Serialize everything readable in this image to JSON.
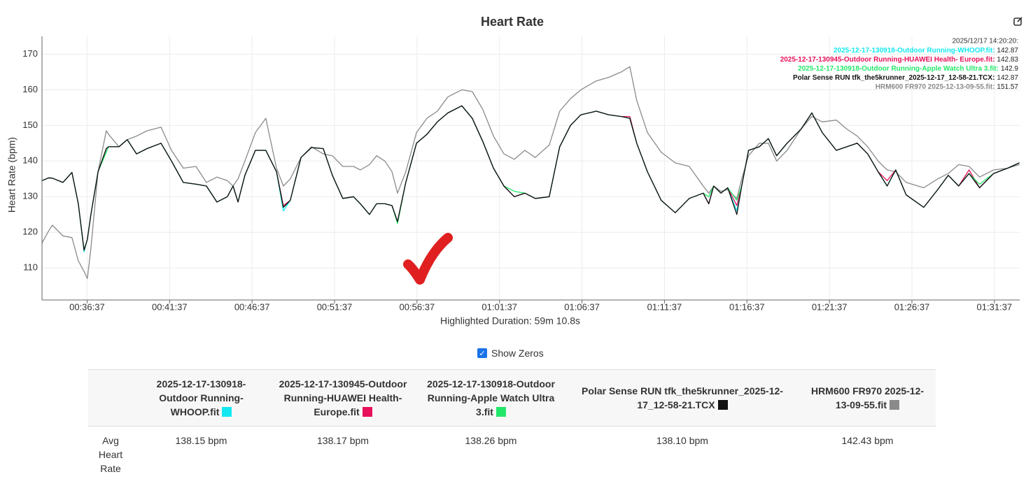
{
  "chart_data": {
    "type": "line",
    "title": "Heart Rate",
    "ylabel": "Heart Rate (bpm)",
    "xlabel": "Highlighted Duration: 59m 10.8s",
    "xlim": [
      2033,
      5589
    ],
    "ylim": [
      101,
      175
    ],
    "grid": true,
    "xticks": [
      {
        "value": 2197,
        "label": "00:36:37"
      },
      {
        "value": 2497,
        "label": "00:41:37"
      },
      {
        "value": 2797,
        "label": "00:46:37"
      },
      {
        "value": 3097,
        "label": "00:51:37"
      },
      {
        "value": 3397,
        "label": "00:56:37"
      },
      {
        "value": 3697,
        "label": "01:01:37"
      },
      {
        "value": 3997,
        "label": "01:06:37"
      },
      {
        "value": 4297,
        "label": "01:11:37"
      },
      {
        "value": 4597,
        "label": "01:16:37"
      },
      {
        "value": 4897,
        "label": "01:21:37"
      },
      {
        "value": 5197,
        "label": "01:26:37"
      },
      {
        "value": 5497,
        "label": "01:31:37"
      }
    ],
    "yticks": [
      110,
      120,
      130,
      140,
      150,
      160,
      170
    ],
    "x": [
      2033,
      2058,
      2071,
      2109,
      2142,
      2165,
      2186,
      2198,
      2211,
      2237,
      2267,
      2275,
      2313,
      2343,
      2377,
      2415,
      2466,
      2504,
      2547,
      2593,
      2631,
      2669,
      2707,
      2728,
      2746,
      2771,
      2809,
      2847,
      2886,
      2911,
      2936,
      2975,
      3013,
      3056,
      3089,
      3127,
      3166,
      3191,
      3224,
      3250,
      3280,
      3306,
      3326,
      3356,
      3395,
      3433,
      3471,
      3509,
      3560,
      3598,
      3636,
      3675,
      3713,
      3751,
      3789,
      3827,
      3878,
      3916,
      3955,
      3993,
      4049,
      4094,
      4140,
      4171,
      4196,
      4235,
      4285,
      4336,
      4387,
      4438,
      4458,
      4476,
      4502,
      4527,
      4560,
      4578,
      4603,
      4642,
      4675,
      4705,
      4743,
      4794,
      4833,
      4871,
      4922,
      4960,
      4998,
      5036,
      5074,
      5107,
      5138,
      5176,
      5240,
      5291,
      5329,
      5367,
      5405,
      5443,
      5494,
      5545,
      5588
    ],
    "series": [
      {
        "name": "2025-12-17-130918-Outdoor Running-WHOOP.fit",
        "color": "#13e8f0",
        "values": [
          134.5,
          135.3,
          135.2,
          134,
          136.8,
          128,
          114.5,
          118,
          125,
          137,
          143.5,
          144,
          144,
          146,
          142,
          143.5,
          145,
          140,
          134,
          133.5,
          133,
          128.5,
          130,
          133,
          128.5,
          136,
          143,
          143,
          137,
          126,
          129,
          141,
          143.8,
          143.5,
          136,
          129.5,
          130,
          128,
          125,
          128,
          128,
          127.5,
          123,
          134,
          145,
          147.5,
          151,
          153.5,
          155.5,
          152,
          145.5,
          138,
          133,
          130,
          131,
          129.5,
          130,
          144,
          150,
          153,
          154,
          153,
          152.5,
          152,
          145,
          137,
          129,
          125.5,
          129.5,
          131,
          128,
          133,
          131,
          132.5,
          126,
          133,
          143,
          144,
          146.3,
          141.5,
          145,
          149,
          153.5,
          148,
          143,
          144,
          145,
          142,
          137,
          133,
          137.5,
          130.5,
          127,
          132,
          136,
          133,
          136.5,
          132.5,
          136.5,
          138,
          139.5
        ]
      },
      {
        "name": "2025-12-17-130945-Outdoor Running-HUAWEI Health- Europe.fit",
        "color": "#e8105a",
        "values": [
          134.5,
          135.3,
          135.2,
          134,
          136.8,
          128,
          115,
          118,
          125,
          137,
          143.5,
          144,
          144,
          146,
          142,
          143.5,
          145,
          140,
          134,
          133.5,
          133,
          128.5,
          130,
          133,
          128.5,
          136,
          143,
          143,
          137,
          127.5,
          129,
          141,
          143.8,
          143.5,
          136,
          129.5,
          130,
          128,
          125,
          128,
          128,
          127.5,
          123,
          134,
          145,
          147.5,
          151,
          153.5,
          155.5,
          152,
          145.5,
          138,
          133,
          130,
          131,
          129.5,
          130,
          144,
          150,
          153,
          154,
          153,
          152.5,
          152.5,
          145,
          137,
          129,
          125.5,
          129.5,
          131,
          128,
          133,
          131,
          132.5,
          127.5,
          133,
          143,
          144,
          146.3,
          141.5,
          145,
          149,
          153.5,
          148,
          143,
          144,
          145,
          142,
          137,
          134.5,
          137.5,
          130.5,
          127,
          132,
          136,
          133,
          137.5,
          132.5,
          136.5,
          138,
          139.5
        ]
      },
      {
        "name": "2025-12-17-130918-Outdoor Running-Apple Watch Ultra 3.fit",
        "color": "#22e86a",
        "values": [
          134.5,
          135.3,
          135.2,
          134,
          136.8,
          128,
          115,
          118,
          125,
          137,
          142.5,
          144,
          144,
          146,
          142,
          143.5,
          145,
          140,
          134,
          133.5,
          133,
          128.5,
          130,
          133,
          128.5,
          136,
          143,
          143,
          137,
          127,
          129,
          141,
          143.8,
          143.5,
          136,
          129.5,
          130,
          128,
          125,
          128,
          128,
          127.5,
          122.5,
          134,
          145,
          147.5,
          151,
          153.5,
          155.5,
          152,
          145.5,
          138,
          133,
          131.5,
          131,
          129.5,
          130,
          144,
          150,
          153,
          154,
          153,
          152.5,
          152,
          145,
          137,
          129,
          125.5,
          129.5,
          131,
          130,
          133,
          131,
          132.5,
          129,
          133,
          143,
          144,
          146.3,
          141.5,
          145,
          149,
          153.5,
          148,
          143,
          144,
          145,
          142,
          137,
          133,
          137.5,
          130.5,
          127,
          132,
          136,
          133,
          136.5,
          133.5,
          136.5,
          138,
          139.5
        ]
      },
      {
        "name": "Polar Sense RUN tfk_the5krunner_2025-12-17_12-58-21.TCX",
        "color": "#111111",
        "values": [
          134.5,
          135.3,
          135.2,
          134,
          136.8,
          128,
          115,
          118,
          125,
          137,
          143.5,
          144,
          144,
          146,
          142,
          143.5,
          145,
          140,
          134,
          133.5,
          133,
          128.5,
          130,
          133,
          128.5,
          136,
          143,
          143,
          137,
          127,
          129,
          141,
          143.8,
          143.5,
          136,
          129.5,
          130,
          128,
          125,
          128,
          128,
          127.5,
          123,
          134,
          145,
          147.5,
          151,
          153.5,
          155.5,
          152,
          145.5,
          138,
          133,
          130,
          131,
          129.5,
          130,
          144,
          150,
          153,
          154,
          153,
          152.5,
          152,
          145,
          137,
          129,
          125.5,
          129.5,
          131,
          128,
          133,
          131,
          132.5,
          125,
          133,
          143,
          144,
          146.3,
          141.5,
          145,
          149,
          153.5,
          148,
          143,
          144,
          145,
          142,
          137,
          133,
          137.5,
          130.5,
          127,
          132,
          136,
          133,
          136.5,
          132.5,
          136.5,
          138,
          139.5
        ]
      },
      {
        "name": "HRM600 FR970 2025-12-13-09-55.fit",
        "color": "#8a8a8a",
        "values": [
          117,
          120.5,
          122,
          119,
          118.5,
          112,
          109,
          107,
          115.5,
          137,
          148.5,
          147.5,
          144,
          146,
          147,
          148.5,
          149.5,
          143,
          138,
          138.5,
          134,
          135.5,
          134.5,
          133,
          135,
          140,
          148,
          152,
          138,
          133,
          135,
          141,
          144,
          142,
          141.5,
          138.5,
          138.5,
          137.5,
          139,
          141.5,
          140,
          137,
          131,
          137,
          148,
          152,
          154,
          158,
          160,
          159.5,
          154.5,
          147,
          142,
          140.5,
          143,
          141,
          144.5,
          154,
          157.5,
          160,
          162.5,
          163.5,
          165,
          166.5,
          157,
          148,
          142.5,
          139.5,
          138.5,
          133,
          131,
          133,
          131.5,
          132,
          129.5,
          135,
          141.5,
          145,
          145,
          140,
          143,
          149,
          152.5,
          151,
          151.5,
          149,
          147,
          144,
          140,
          137.5,
          137,
          134,
          132.5,
          135,
          136.5,
          139,
          138.5,
          135.5,
          137.5,
          138,
          139
        ]
      }
    ],
    "hover": {
      "time": "2025/12/17 14:20:20:",
      "entries": [
        {
          "label": "2025-12-17-130918-Outdoor Running-WHOOP.fit:",
          "value": 142.87
        },
        {
          "label": "2025-12-17-130945-Outdoor Running-HUAWEI Health- Europe.fit:",
          "value": 142.83
        },
        {
          "label": "2025-12-17-130918-Outdoor Running-Apple Watch Ultra 3.fit:",
          "value": 142.9
        },
        {
          "label": "Polar Sense RUN tfk_the5krunner_2025-12-17_12-58-21.TCX:",
          "value": 142.87
        },
        {
          "label": "HRM600 FR970 2025-12-13-09-55.fit:",
          "value": 151.57
        }
      ]
    }
  },
  "controls": {
    "show_zeros": "Show Zeros"
  },
  "table": {
    "row_label": "Avg Heart Rate",
    "values": [
      "138.15 bpm",
      "138.17 bpm",
      "138.26 bpm",
      "138.10 bpm",
      "142.43 bpm"
    ]
  }
}
